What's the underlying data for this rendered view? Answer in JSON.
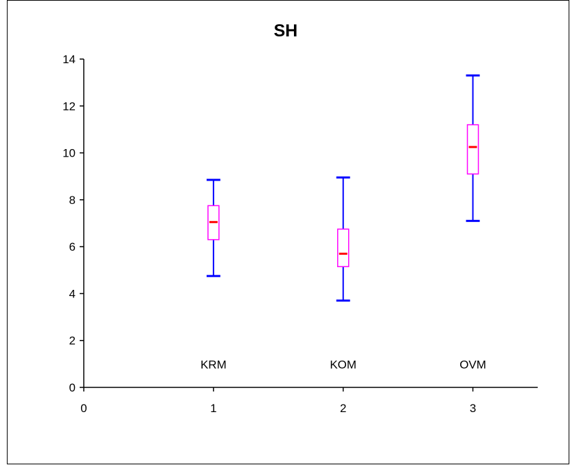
{
  "chart_data": {
    "type": "box",
    "title": "SH",
    "xlabel": "",
    "ylabel": "",
    "xlim": [
      0,
      3.5
    ],
    "ylim": [
      0,
      14
    ],
    "x_ticks": [
      0,
      1,
      2,
      3
    ],
    "y_ticks": [
      0,
      2,
      4,
      6,
      8,
      10,
      12,
      14
    ],
    "grid": false,
    "series": [
      {
        "x": 1,
        "label": "KRM",
        "min": 4.75,
        "q1": 6.3,
        "median": 7.05,
        "q3": 7.75,
        "max": 8.85
      },
      {
        "x": 2,
        "label": "KOM",
        "min": 3.7,
        "q1": 5.15,
        "median": 5.7,
        "q3": 6.75,
        "max": 8.95
      },
      {
        "x": 3,
        "label": "OVM",
        "min": 7.1,
        "q1": 9.1,
        "median": 10.25,
        "q3": 11.2,
        "max": 13.3
      }
    ],
    "colors": {
      "whisker": "#0000ff",
      "box": "#ff00ff",
      "median": "#ff0000",
      "axis": "#000000"
    }
  }
}
